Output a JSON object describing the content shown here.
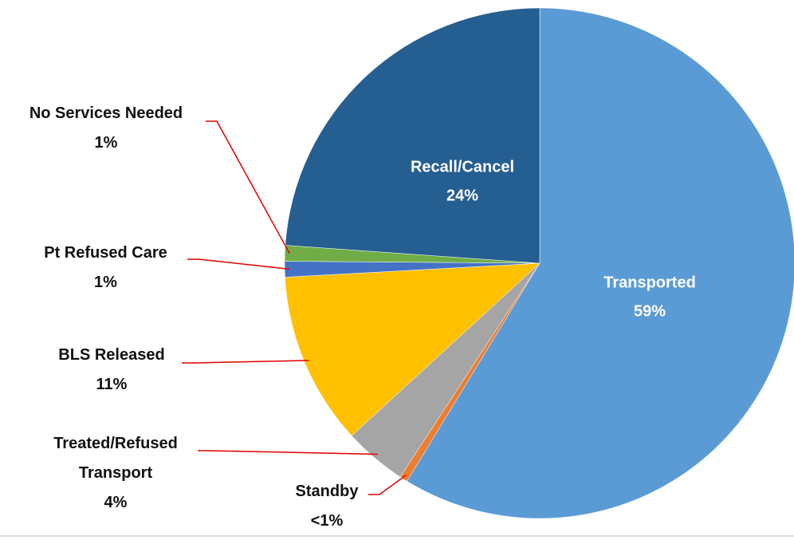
{
  "chart_data": {
    "type": "pie",
    "categories": [
      "Transported",
      "Standby",
      "Treated/Refused Transport",
      "BLS Released",
      "Pt Refused Care",
      "No Services Needed",
      "Recall/Cancel"
    ],
    "values": [
      59,
      0.5,
      4,
      11,
      1,
      1,
      24
    ],
    "value_labels": [
      "59%",
      "<1%",
      "4%",
      "11%",
      "1%",
      "1%",
      "24%"
    ],
    "colors": [
      "#5b9bd5",
      "#ed7d31",
      "#a5a5a5",
      "#ffc000",
      "#4472c4",
      "#70ad47",
      "#255e91"
    ]
  }
}
